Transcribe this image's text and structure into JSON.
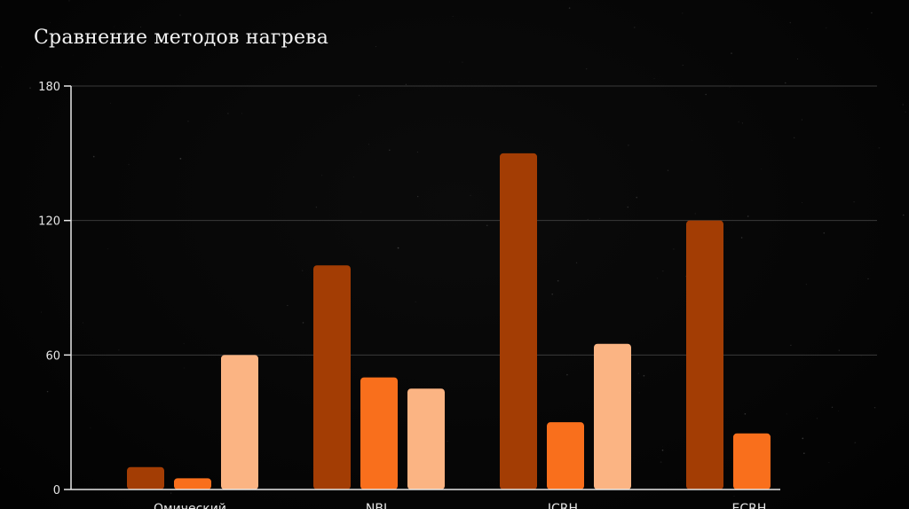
{
  "chart_data": {
    "type": "bar",
    "title": "Сравнение методов нагрева",
    "xlabel": "",
    "ylabel": "",
    "categories": [
      "Омический",
      "NBI",
      "ICRH",
      "ECRH"
    ],
    "series": [
      {
        "values": [
          10,
          100,
          150,
          120
        ],
        "color": "#a33d04"
      },
      {
        "values": [
          5,
          50,
          30,
          25
        ],
        "color": "#f96f1c"
      },
      {
        "values": [
          60,
          45,
          65,
          null
        ],
        "color": "#fbb483"
      }
    ],
    "ylim": [
      0,
      180
    ],
    "yticks": [
      0,
      60,
      120,
      180
    ],
    "grid": true,
    "legend": "none",
    "colors": {
      "background": "#050505",
      "gridline": "#3a3a3a",
      "axis": "#e6e6e6",
      "text": "#e6e6e6"
    }
  }
}
